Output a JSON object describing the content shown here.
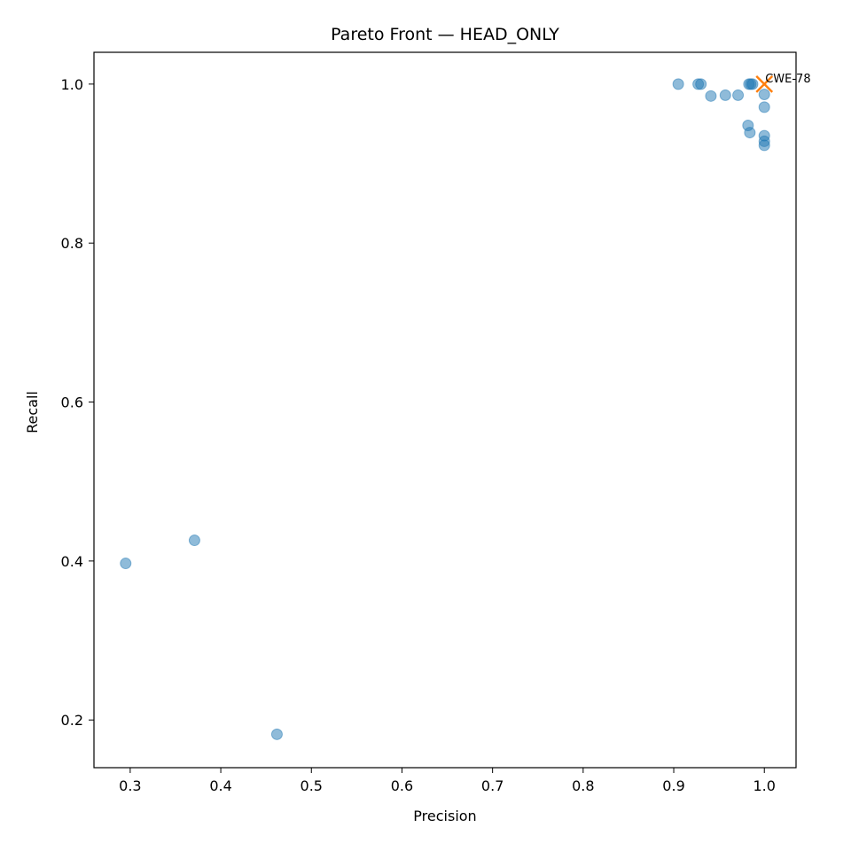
{
  "chart_data": {
    "type": "scatter",
    "title": "Pareto Front — HEAD_ONLY",
    "xlabel": "Precision",
    "ylabel": "Recall",
    "xlim": [
      0.26,
      1.035
    ],
    "ylim": [
      0.14,
      1.04
    ],
    "xticks": [
      0.3,
      0.4,
      0.5,
      0.6,
      0.7,
      0.8,
      0.9,
      1.0
    ],
    "xtick_labels": [
      "0.3",
      "0.4",
      "0.5",
      "0.6",
      "0.7",
      "0.8",
      "0.9",
      "1.0"
    ],
    "yticks": [
      0.2,
      0.4,
      0.6,
      0.8,
      1.0
    ],
    "ytick_labels": [
      "0.2",
      "0.4",
      "0.6",
      "0.8",
      "1.0"
    ],
    "grid": false,
    "colors": {
      "points": "#1f77b4",
      "highlight": "#ff7f0e"
    },
    "series": [
      {
        "points": [
          {
            "x": 0.905,
            "y": 1.0
          },
          {
            "x": 0.927,
            "y": 1.0
          },
          {
            "x": 0.93,
            "y": 1.0
          },
          {
            "x": 0.983,
            "y": 1.0
          },
          {
            "x": 0.985,
            "y": 1.0
          },
          {
            "x": 0.987,
            "y": 1.0
          },
          {
            "x": 0.941,
            "y": 0.985
          },
          {
            "x": 0.957,
            "y": 0.986
          },
          {
            "x": 0.971,
            "y": 0.986
          },
          {
            "x": 1.0,
            "y": 0.987
          },
          {
            "x": 1.0,
            "y": 0.971
          },
          {
            "x": 0.982,
            "y": 0.948
          },
          {
            "x": 0.984,
            "y": 0.939
          },
          {
            "x": 1.0,
            "y": 0.935
          },
          {
            "x": 1.0,
            "y": 0.928
          },
          {
            "x": 1.0,
            "y": 0.923
          },
          {
            "x": 0.295,
            "y": 0.397
          },
          {
            "x": 0.371,
            "y": 0.426
          },
          {
            "x": 0.462,
            "y": 0.182
          }
        ]
      }
    ],
    "highlight": {
      "x": 1.0,
      "y": 1.0,
      "marker": "x",
      "label": "CWE-78"
    }
  }
}
